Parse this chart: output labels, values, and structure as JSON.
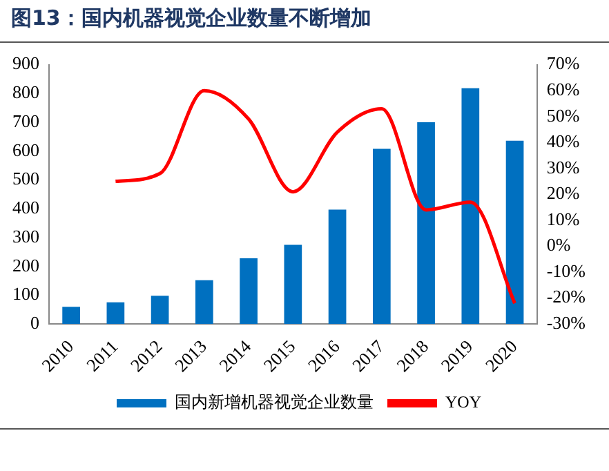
{
  "chart_data": {
    "type": "bar",
    "title": "图13：国内机器视觉企业数量不断增加",
    "categories": [
      "2010",
      "2011",
      "2012",
      "2013",
      "2014",
      "2015",
      "2016",
      "2017",
      "2018",
      "2019",
      "2020"
    ],
    "series": [
      {
        "name": "国内新增机器视觉企业数量",
        "color": "#0070c0",
        "values": [
          60,
          75,
          98,
          152,
          228,
          275,
          397,
          608,
          700,
          818,
          636
        ]
      },
      {
        "name": "YOY",
        "type": "line",
        "axis": "y2",
        "color": "#ff0000",
        "values": [
          null,
          25,
          28,
          60,
          49,
          21,
          44,
          53,
          14,
          17,
          -22
        ]
      }
    ],
    "ylim": [
      0,
      900
    ],
    "yticks": [
      0,
      100,
      200,
      300,
      400,
      500,
      600,
      700,
      800,
      900
    ],
    "y2lim": [
      -30,
      70
    ],
    "y2ticks": [
      {
        "value": -30,
        "label": "-30%"
      },
      {
        "value": -20,
        "label": "-20%"
      },
      {
        "value": -10,
        "label": "-10%"
      },
      {
        "value": 0,
        "label": "0%"
      },
      {
        "value": 10,
        "label": "10%"
      },
      {
        "value": 20,
        "label": "20%"
      },
      {
        "value": 30,
        "label": "30%"
      },
      {
        "value": 40,
        "label": "40%"
      },
      {
        "value": 50,
        "label": "50%"
      },
      {
        "value": 60,
        "label": "60%"
      },
      {
        "value": 70,
        "label": "70%"
      }
    ],
    "grid": false,
    "legend": "bottom",
    "marker": "none"
  }
}
